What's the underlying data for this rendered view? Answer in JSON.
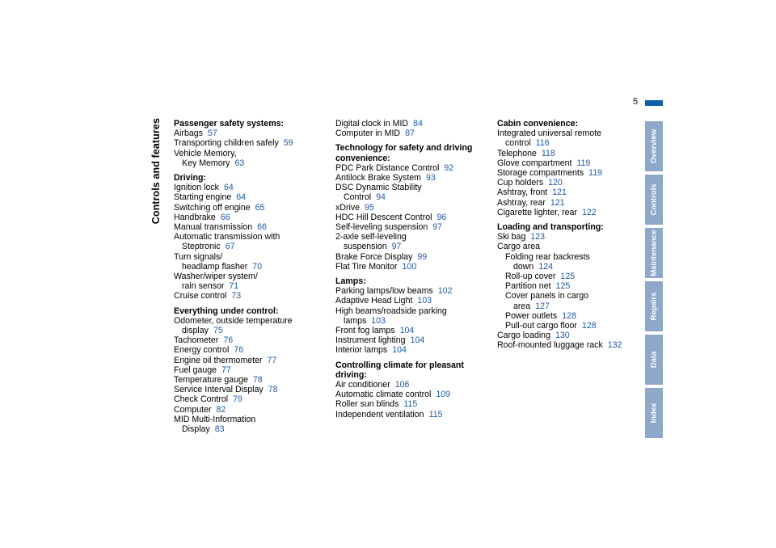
{
  "page": {
    "number": "5",
    "vertical_title": "Controls and features"
  },
  "tabs": [
    "Overview",
    "Controls",
    "Maintenance",
    "Repairs",
    "Data",
    "Index"
  ],
  "columns": [
    [
      {
        "heading": "Passenger safety systems:",
        "entries": [
          {
            "lines": [
              "Airbags"
            ],
            "page": "57"
          },
          {
            "lines": [
              "Transporting children safely"
            ],
            "page": "59"
          },
          {
            "lines": [
              "Vehicle Memory,",
              "Key Memory"
            ],
            "page": "63"
          }
        ]
      },
      {
        "heading": "Driving:",
        "entries": [
          {
            "lines": [
              "Ignition lock"
            ],
            "page": "64"
          },
          {
            "lines": [
              "Starting engine"
            ],
            "page": "64"
          },
          {
            "lines": [
              "Switching off engine"
            ],
            "page": "65"
          },
          {
            "lines": [
              "Handbrake"
            ],
            "page": "66"
          },
          {
            "lines": [
              "Manual transmission"
            ],
            "page": "66"
          },
          {
            "lines": [
              "Automatic transmission with",
              "Steptronic"
            ],
            "page": "67"
          },
          {
            "lines": [
              "Turn signals/",
              "headlamp flasher"
            ],
            "page": "70"
          },
          {
            "lines": [
              "Washer/wiper system/",
              "rain sensor"
            ],
            "page": "71"
          },
          {
            "lines": [
              "Cruise control"
            ],
            "page": "73"
          }
        ]
      },
      {
        "heading": "Everything under control:",
        "entries": [
          {
            "lines": [
              "Odometer, outside temperature",
              "display"
            ],
            "page": "75"
          },
          {
            "lines": [
              "Tachometer"
            ],
            "page": "76"
          },
          {
            "lines": [
              "Energy control"
            ],
            "page": "76"
          },
          {
            "lines": [
              "Engine oil thermometer"
            ],
            "page": "77"
          },
          {
            "lines": [
              "Fuel gauge"
            ],
            "page": "77"
          },
          {
            "lines": [
              "Temperature gauge"
            ],
            "page": "78"
          },
          {
            "lines": [
              "Service Interval Display"
            ],
            "page": "78"
          },
          {
            "lines": [
              "Check Control"
            ],
            "page": "79"
          },
          {
            "lines": [
              "Computer"
            ],
            "page": "82"
          },
          {
            "lines": [
              "MID Multi-Information",
              "Display"
            ],
            "page": "83"
          }
        ]
      }
    ],
    [
      {
        "heading": "",
        "entries": [
          {
            "lines": [
              "Digital clock in MID"
            ],
            "page": "84"
          },
          {
            "lines": [
              "Computer in MID"
            ],
            "page": "87"
          }
        ]
      },
      {
        "heading": "Technology for safety and driving convenience:",
        "entries": [
          {
            "lines": [
              "PDC Park Distance Control"
            ],
            "page": "92"
          },
          {
            "lines": [
              "Antilock Brake System"
            ],
            "page": "93"
          },
          {
            "lines": [
              "DSC Dynamic Stability",
              "Control"
            ],
            "page": "94"
          },
          {
            "lines": [
              "xDrive"
            ],
            "page": "95"
          },
          {
            "lines": [
              "HDC Hill Descent Control"
            ],
            "page": "96"
          },
          {
            "lines": [
              "Self-leveling suspension"
            ],
            "page": "97"
          },
          {
            "lines": [
              "2-axle self-leveling",
              "suspension"
            ],
            "page": "97"
          },
          {
            "lines": [
              "Brake Force Display"
            ],
            "page": "99"
          },
          {
            "lines": [
              "Flat Tire Monitor"
            ],
            "page": "100"
          }
        ]
      },
      {
        "heading": "Lamps:",
        "entries": [
          {
            "lines": [
              "Parking lamps/low beams"
            ],
            "page": "102"
          },
          {
            "lines": [
              "Adaptive Head Light"
            ],
            "page": "103"
          },
          {
            "lines": [
              "High beams/roadside parking",
              "lamps"
            ],
            "page": "103"
          },
          {
            "lines": [
              "Front fog lamps"
            ],
            "page": "104"
          },
          {
            "lines": [
              "Instrument lighting"
            ],
            "page": "104"
          },
          {
            "lines": [
              "Interior lamps"
            ],
            "page": "104"
          }
        ]
      },
      {
        "heading": "Controlling climate for pleasant driving:",
        "entries": [
          {
            "lines": [
              "Air conditioner"
            ],
            "page": "106"
          },
          {
            "lines": [
              "Automatic climate control"
            ],
            "page": "109"
          },
          {
            "lines": [
              "Roller sun blinds"
            ],
            "page": "115"
          },
          {
            "lines": [
              "Independent ventilation"
            ],
            "page": "115"
          }
        ]
      }
    ],
    [
      {
        "heading": "Cabin convenience:",
        "entries": [
          {
            "lines": [
              "Integrated universal remote",
              "control"
            ],
            "page": "116"
          },
          {
            "lines": [
              "Telephone"
            ],
            "page": "118"
          },
          {
            "lines": [
              "Glove compartment"
            ],
            "page": "119"
          },
          {
            "lines": [
              "Storage compartments"
            ],
            "page": "119"
          },
          {
            "lines": [
              "Cup holders"
            ],
            "page": "120"
          },
          {
            "lines": [
              "Ashtray, front"
            ],
            "page": "121"
          },
          {
            "lines": [
              "Ashtray, rear"
            ],
            "page": "121"
          },
          {
            "lines": [
              "Cigarette lighter, rear"
            ],
            "page": "122"
          }
        ]
      },
      {
        "heading": "Loading and transporting:",
        "entries": [
          {
            "lines": [
              "Ski bag"
            ],
            "page": "123"
          },
          {
            "lines": [
              "Cargo area"
            ],
            "page": ""
          },
          {
            "lines": [
              "Folding rear backrests",
              "down"
            ],
            "page": "124",
            "sub": true
          },
          {
            "lines": [
              "Roll-up cover"
            ],
            "page": "125",
            "sub": true
          },
          {
            "lines": [
              "Partition net"
            ],
            "page": "125",
            "sub": true
          },
          {
            "lines": [
              "Cover panels in cargo",
              "area"
            ],
            "page": "127",
            "sub": true
          },
          {
            "lines": [
              "Power outlets"
            ],
            "page": "128",
            "sub": true
          },
          {
            "lines": [
              "Pull-out cargo floor"
            ],
            "page": "128",
            "sub": true
          },
          {
            "lines": [
              "Cargo loading"
            ],
            "page": "130"
          },
          {
            "lines": [
              "Roof-mounted luggage rack"
            ],
            "page": "132"
          }
        ]
      }
    ]
  ]
}
